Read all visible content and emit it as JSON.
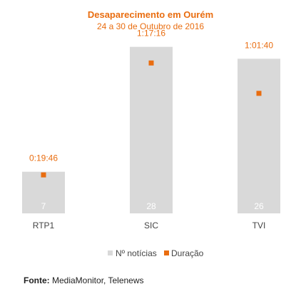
{
  "chart_data": {
    "type": "bar",
    "title": "Desaparecimento em Ourém",
    "subtitle": "24 a 30 de Outubro de 2016",
    "categories": [
      "RTP1",
      "SIC",
      "TVI"
    ],
    "series": [
      {
        "name": "Nº notícias",
        "type": "bar",
        "values": [
          7,
          28,
          26
        ],
        "color": "#d9d9d9",
        "label_color": "#ffffff"
      },
      {
        "name": "Duração",
        "type": "marker",
        "values": [
          "0:19:46",
          "1:17:16",
          "1:01:40"
        ],
        "values_seconds": [
          1186,
          4636,
          3700
        ],
        "color": "#e96d10"
      }
    ],
    "ylim_bars": [
      0,
      30
    ],
    "ylim_duration_seconds": [
      0,
      5500
    ],
    "grid": false,
    "legend_position": "bottom"
  },
  "source": {
    "label": "Fonte:",
    "text": " MediaMonitor, Telenews"
  }
}
